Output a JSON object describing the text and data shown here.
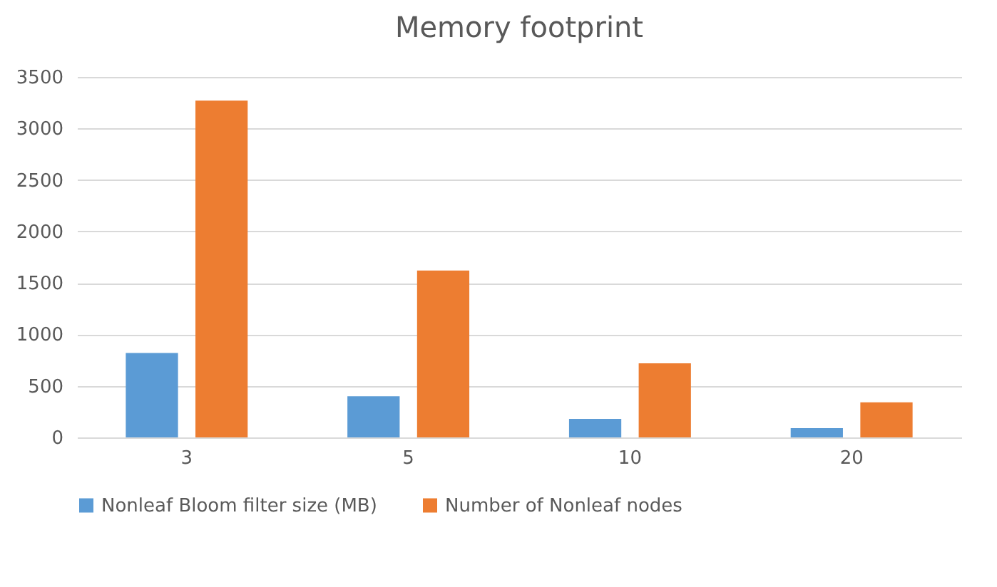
{
  "chart_data": {
    "type": "bar",
    "title": "Memory footprint",
    "categories": [
      "3",
      "5",
      "10",
      "20"
    ],
    "series": [
      {
        "name": "Nonleaf Bloom filter size (MB)",
        "color": "#5b9bd5",
        "values": [
          820,
          400,
          180,
          90
        ]
      },
      {
        "name": "Number of Nonleaf nodes",
        "color": "#ed7d31",
        "values": [
          3270,
          1620,
          720,
          340
        ]
      }
    ],
    "ylim": [
      0,
      3500
    ],
    "yticks": [
      0,
      500,
      1000,
      1500,
      2000,
      2500,
      3000,
      3500
    ],
    "grid": "y",
    "legend": "bottom"
  }
}
